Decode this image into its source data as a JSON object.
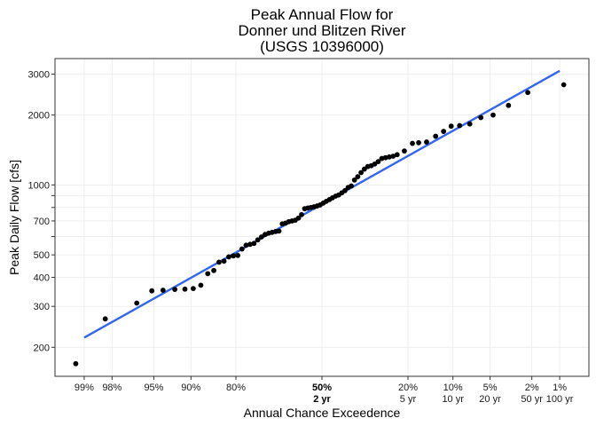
{
  "chart_data": {
    "type": "scatter",
    "title_lines": [
      "Peak Annual Flow for",
      "Donner und Blitzen River",
      "(USGS 10396000)"
    ],
    "xlabel": "Annual Chance Exceedence",
    "ylabel": "Peak Daily Flow [cfs]",
    "y_scale": "log",
    "ylim": [
      150,
      3500
    ],
    "x_scale": "normal-probability (annual chance exceedence, decreasing left to right)",
    "xlim_exceedance_pct": [
      99.55,
      0.45
    ],
    "grid": true,
    "y_ticks": [
      200,
      300,
      400,
      500,
      700,
      1000,
      2000,
      3000
    ],
    "y_ticks_labeled": [
      "200",
      "300",
      "400",
      "500",
      "700",
      "1000",
      "2000",
      "3000"
    ],
    "y_minor_tick_marks": [
      600,
      800,
      900
    ],
    "x_ticks": [
      {
        "p": 99,
        "label": "99%",
        "sub": "",
        "bold": false
      },
      {
        "p": 98,
        "label": "98%",
        "sub": "",
        "bold": false
      },
      {
        "p": 95,
        "label": "95%",
        "sub": "",
        "bold": false
      },
      {
        "p": 90,
        "label": "90%",
        "sub": "",
        "bold": false
      },
      {
        "p": 80,
        "label": "80%",
        "sub": "",
        "bold": false
      },
      {
        "p": 50,
        "label": "50%",
        "sub": "2 yr",
        "bold": true
      },
      {
        "p": 20,
        "label": "20%",
        "sub": "5 yr",
        "bold": false
      },
      {
        "p": 10,
        "label": "10%",
        "sub": "10 yr",
        "bold": false
      },
      {
        "p": 5,
        "label": "5%",
        "sub": "20 yr",
        "bold": false
      },
      {
        "p": 2,
        "label": "2%",
        "sub": "50 yr",
        "bold": false
      },
      {
        "p": 1,
        "label": "1%",
        "sub": "100 yr",
        "bold": false
      }
    ],
    "points": [
      {
        "p": 99.2,
        "y": 170
      },
      {
        "p": 98.3,
        "y": 265
      },
      {
        "p": 96.5,
        "y": 310
      },
      {
        "p": 95.2,
        "y": 350
      },
      {
        "p": 94.0,
        "y": 352
      },
      {
        "p": 92.5,
        "y": 355
      },
      {
        "p": 91.0,
        "y": 356
      },
      {
        "p": 89.6,
        "y": 358
      },
      {
        "p": 88.2,
        "y": 370
      },
      {
        "p": 86.8,
        "y": 415
      },
      {
        "p": 85.5,
        "y": 428
      },
      {
        "p": 84.3,
        "y": 465
      },
      {
        "p": 83.1,
        "y": 470
      },
      {
        "p": 81.9,
        "y": 490
      },
      {
        "p": 80.7,
        "y": 495
      },
      {
        "p": 79.5,
        "y": 497
      },
      {
        "p": 78.3,
        "y": 530
      },
      {
        "p": 77.1,
        "y": 550
      },
      {
        "p": 75.9,
        "y": 555
      },
      {
        "p": 74.7,
        "y": 560
      },
      {
        "p": 73.5,
        "y": 580
      },
      {
        "p": 72.3,
        "y": 597
      },
      {
        "p": 71.1,
        "y": 612
      },
      {
        "p": 69.9,
        "y": 620
      },
      {
        "p": 68.7,
        "y": 625
      },
      {
        "p": 67.5,
        "y": 630
      },
      {
        "p": 66.3,
        "y": 633
      },
      {
        "p": 65.1,
        "y": 680
      },
      {
        "p": 63.9,
        "y": 685
      },
      {
        "p": 62.7,
        "y": 695
      },
      {
        "p": 61.5,
        "y": 700
      },
      {
        "p": 60.3,
        "y": 705
      },
      {
        "p": 59.1,
        "y": 720
      },
      {
        "p": 57.9,
        "y": 745
      },
      {
        "p": 56.7,
        "y": 790
      },
      {
        "p": 55.5,
        "y": 795
      },
      {
        "p": 54.3,
        "y": 800
      },
      {
        "p": 53.1,
        "y": 805
      },
      {
        "p": 51.9,
        "y": 812
      },
      {
        "p": 50.7,
        "y": 820
      },
      {
        "p": 49.5,
        "y": 835
      },
      {
        "p": 48.3,
        "y": 850
      },
      {
        "p": 47.1,
        "y": 865
      },
      {
        "p": 45.9,
        "y": 880
      },
      {
        "p": 44.7,
        "y": 895
      },
      {
        "p": 43.5,
        "y": 905
      },
      {
        "p": 42.3,
        "y": 925
      },
      {
        "p": 41.1,
        "y": 945
      },
      {
        "p": 39.9,
        "y": 975
      },
      {
        "p": 38.7,
        "y": 990
      },
      {
        "p": 37.5,
        "y": 1050
      },
      {
        "p": 36.3,
        "y": 1085
      },
      {
        "p": 35.1,
        "y": 1130
      },
      {
        "p": 33.9,
        "y": 1170
      },
      {
        "p": 32.7,
        "y": 1200
      },
      {
        "p": 31.5,
        "y": 1210
      },
      {
        "p": 30.3,
        "y": 1230
      },
      {
        "p": 29.1,
        "y": 1260
      },
      {
        "p": 27.9,
        "y": 1300
      },
      {
        "p": 26.7,
        "y": 1310
      },
      {
        "p": 25.5,
        "y": 1320
      },
      {
        "p": 24.3,
        "y": 1330
      },
      {
        "p": 23.1,
        "y": 1350
      },
      {
        "p": 21.0,
        "y": 1400
      },
      {
        "p": 18.8,
        "y": 1510
      },
      {
        "p": 17.2,
        "y": 1520
      },
      {
        "p": 15.3,
        "y": 1530
      },
      {
        "p": 13.3,
        "y": 1620
      },
      {
        "p": 11.7,
        "y": 1700
      },
      {
        "p": 10.3,
        "y": 1790
      },
      {
        "p": 8.9,
        "y": 1800
      },
      {
        "p": 7.4,
        "y": 1830
      },
      {
        "p": 6.0,
        "y": 1950
      },
      {
        "p": 4.7,
        "y": 2000
      },
      {
        "p": 3.4,
        "y": 2200
      },
      {
        "p": 2.2,
        "y": 2500
      },
      {
        "p": 0.9,
        "y": 2700
      }
    ],
    "fit_line": [
      {
        "p": 99.0,
        "y": 220
      },
      {
        "p": 1.0,
        "y": 3100
      }
    ],
    "colors": {
      "points": "#000000",
      "fit_line": "#3366ee",
      "grid": "#ebebeb",
      "panel_border": "#333333"
    }
  }
}
